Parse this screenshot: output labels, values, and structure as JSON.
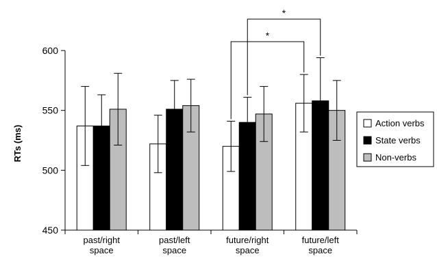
{
  "chart_data": {
    "type": "bar",
    "ylabel": "RTs (ms)",
    "xlabel": "",
    "ylim": [
      450,
      600
    ],
    "yticks": [
      "450",
      "500",
      "550",
      "600"
    ],
    "categories": [
      [
        "past/right",
        "space"
      ],
      [
        "past/left",
        "space"
      ],
      [
        "future/right",
        "space"
      ],
      [
        "future/left",
        "space"
      ]
    ],
    "series": [
      {
        "name": "Action verbs",
        "color": "#ffffff",
        "values": [
          537,
          522,
          520,
          556
        ],
        "error": [
          33,
          24,
          21,
          24
        ]
      },
      {
        "name": "State verbs",
        "color": "#000000",
        "values": [
          537,
          551,
          540,
          558
        ],
        "error": [
          26,
          24,
          21,
          36
        ]
      },
      {
        "name": "Non-verbs",
        "color": "#bdbdbd",
        "values": [
          551,
          554,
          547,
          550
        ],
        "error": [
          30,
          22,
          23,
          25
        ]
      }
    ],
    "significance": [
      {
        "label": "*",
        "from_category": 2,
        "from_series": 0,
        "to_category": 3,
        "to_series": 0
      },
      {
        "label": "*",
        "from_category": 2,
        "from_series": 1,
        "to_category": 3,
        "to_series": 1
      }
    ],
    "legend_position": "right",
    "grid": false
  }
}
